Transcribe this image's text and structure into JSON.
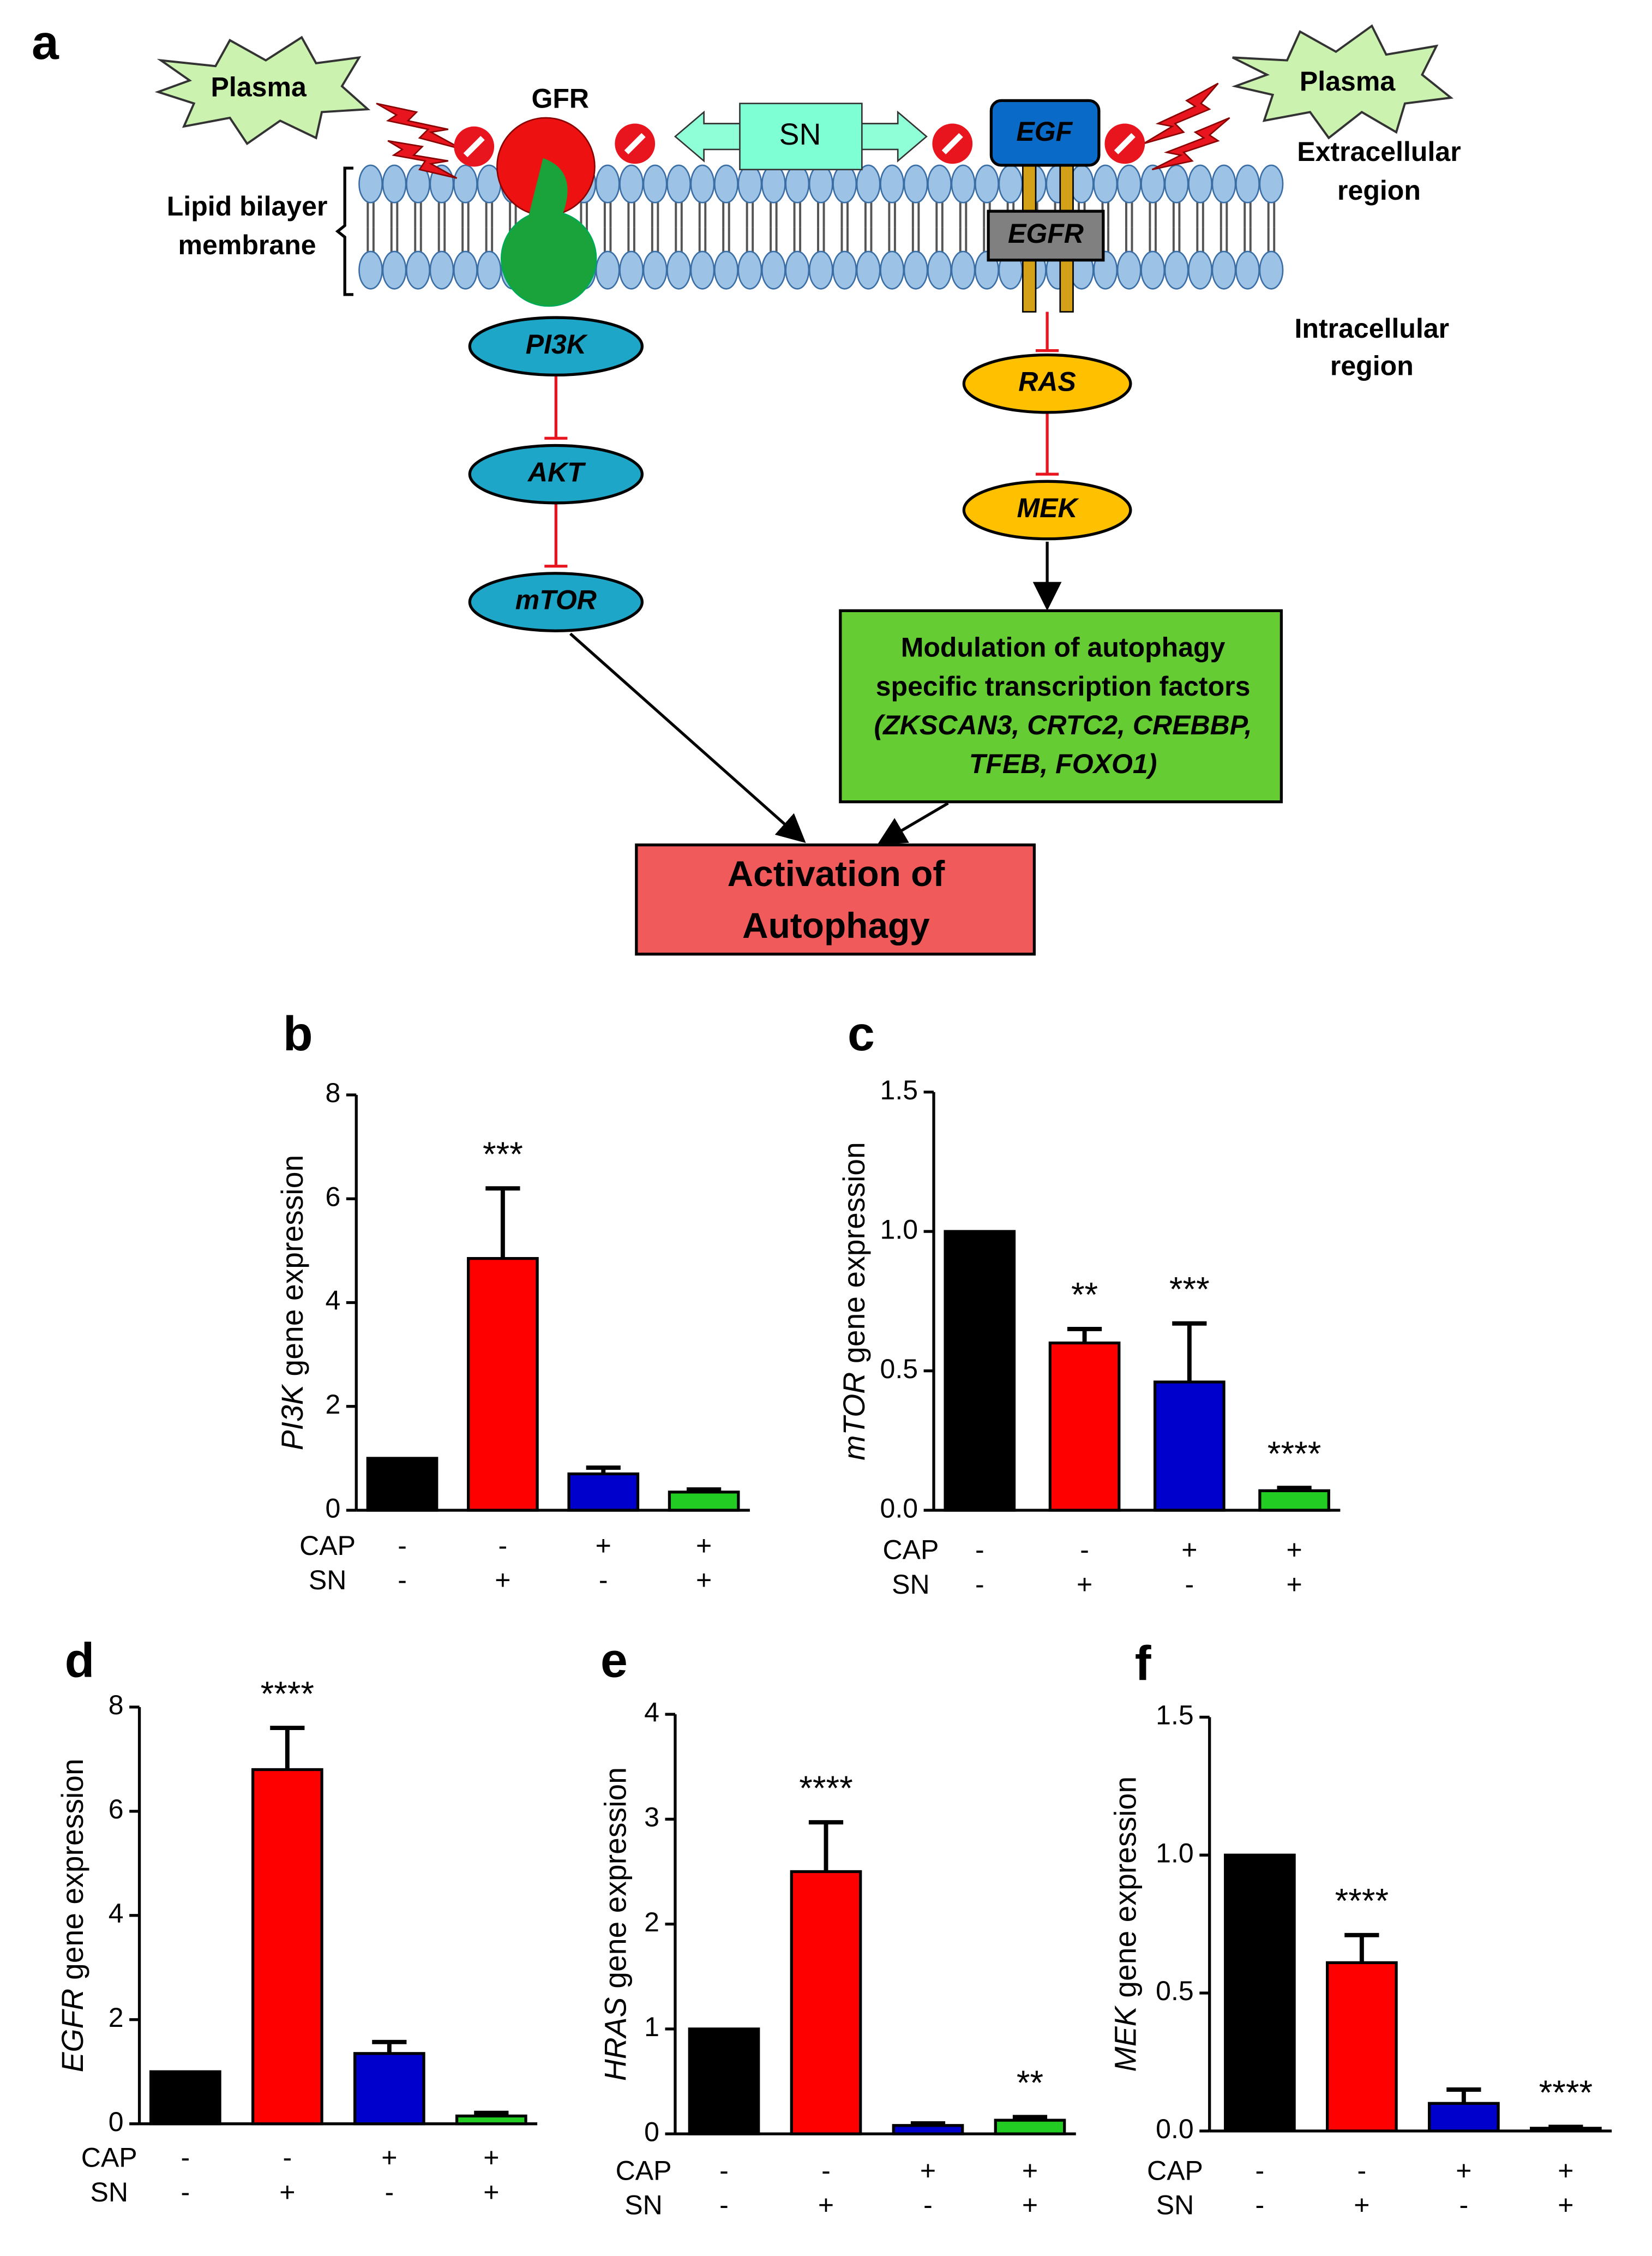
{
  "diagram": {
    "panel": "a",
    "plasma": [
      "Plasma",
      "Plasma"
    ],
    "gfr": "GFR",
    "sn": "SN",
    "egf": "EGF",
    "egfr": "EGFR",
    "extracellular": [
      "Extracellular",
      "region"
    ],
    "intracellular": [
      "Intracellular",
      "region"
    ],
    "membrane": [
      "Lipid bilayer",
      "membrane"
    ],
    "left_pathway": [
      "PI3K",
      "AKT",
      "mTOR"
    ],
    "right_pathway": [
      "RAS",
      "MEK"
    ],
    "transcription_box": [
      "Modulation of autophagy",
      "specific transcription factors",
      "(ZKSCAN3, CRTC2, CREBBP,",
      "TFEB, FOXO1)"
    ],
    "outcome": [
      "Activation of",
      "Autophagy"
    ]
  },
  "chart_data": [
    {
      "type": "bar",
      "panel": "b",
      "ylabel": {
        "gene": "PI3K",
        "text": "gene expression"
      },
      "values": [
        1,
        4.85,
        0.7,
        0.35
      ],
      "errors": [
        0,
        1.35,
        0.12,
        0.05
      ],
      "annotations": [
        null,
        "***",
        null,
        null
      ],
      "colors": [
        "#000000",
        "#ff0000",
        "#0000cc",
        "#22cc22"
      ],
      "ylim": [
        0,
        8
      ],
      "yticks": [
        0,
        2,
        4,
        6,
        8
      ],
      "rows": [
        {
          "name": "CAP",
          "marks": [
            "-",
            "-",
            "+",
            "+"
          ]
        },
        {
          "name": "SN",
          "marks": [
            "-",
            "+",
            "-",
            "+"
          ]
        }
      ]
    },
    {
      "type": "bar",
      "panel": "c",
      "ylabel": {
        "gene": "mTOR",
        "text": "gene expression"
      },
      "values": [
        1,
        0.6,
        0.46,
        0.07
      ],
      "errors": [
        0,
        0.05,
        0.21,
        0.01
      ],
      "annotations": [
        null,
        "**",
        "***",
        "****"
      ],
      "colors": [
        "#000000",
        "#ff0000",
        "#0000cc",
        "#22cc22"
      ],
      "ylim": [
        0,
        1.5
      ],
      "yticks": [
        {
          "value": 0,
          "label": "0.0"
        },
        0.5,
        {
          "value": 1,
          "label": "1.0"
        },
        1.5
      ],
      "rows": [
        {
          "name": "CAP",
          "marks": [
            "-",
            "-",
            "+",
            "+"
          ]
        },
        {
          "name": "SN",
          "marks": [
            "-",
            "+",
            "-",
            "+"
          ]
        }
      ]
    },
    {
      "type": "bar",
      "panel": "d",
      "ylabel": {
        "gene": "EGFR",
        "text": "gene expression"
      },
      "values": [
        1,
        6.8,
        1.35,
        0.15
      ],
      "errors": [
        0,
        0.8,
        0.22,
        0.06
      ],
      "annotations": [
        null,
        "****",
        null,
        null
      ],
      "colors": [
        "#000000",
        "#ff0000",
        "#0000cc",
        "#22cc22"
      ],
      "ylim": [
        0,
        8
      ],
      "yticks": [
        0,
        2,
        4,
        6,
        8
      ],
      "rows": [
        {
          "name": "CAP",
          "marks": [
            "-",
            "-",
            "+",
            "+"
          ]
        },
        {
          "name": "SN",
          "marks": [
            "-",
            "+",
            "-",
            "+"
          ]
        }
      ]
    },
    {
      "type": "bar",
      "panel": "e",
      "ylabel": {
        "gene": "HRAS",
        "text": "gene expression"
      },
      "values": [
        1,
        2.5,
        0.08,
        0.13
      ],
      "errors": [
        0,
        0.47,
        0.02,
        0.03
      ],
      "annotations": [
        null,
        "****",
        null,
        "**"
      ],
      "colors": [
        "#000000",
        "#ff0000",
        "#0000cc",
        "#22cc22"
      ],
      "ylim": [
        0,
        4
      ],
      "yticks": [
        0,
        1,
        2,
        3,
        4
      ],
      "rows": [
        {
          "name": "CAP",
          "marks": [
            "-",
            "-",
            "+",
            "+"
          ]
        },
        {
          "name": "SN",
          "marks": [
            "-",
            "+",
            "-",
            "+"
          ]
        }
      ]
    },
    {
      "type": "bar",
      "panel": "f",
      "ylabel": {
        "gene": "MEK",
        "text": "gene expression"
      },
      "values": [
        1,
        0.61,
        0.1,
        0.01
      ],
      "errors": [
        0,
        0.1,
        0.05,
        0.005
      ],
      "annotations": [
        null,
        "****",
        null,
        "****"
      ],
      "colors": [
        "#000000",
        "#ff0000",
        "#0000cc",
        "#22cc22"
      ],
      "ylim": [
        0,
        1.5
      ],
      "yticks": [
        {
          "value": 0,
          "label": "0.0"
        },
        0.5,
        {
          "value": 1,
          "label": "1.0"
        },
        1.5
      ],
      "rows": [
        {
          "name": "CAP",
          "marks": [
            "-",
            "-",
            "+",
            "+"
          ]
        },
        {
          "name": "SN",
          "marks": [
            "-",
            "+",
            "-",
            "+"
          ]
        }
      ]
    }
  ]
}
